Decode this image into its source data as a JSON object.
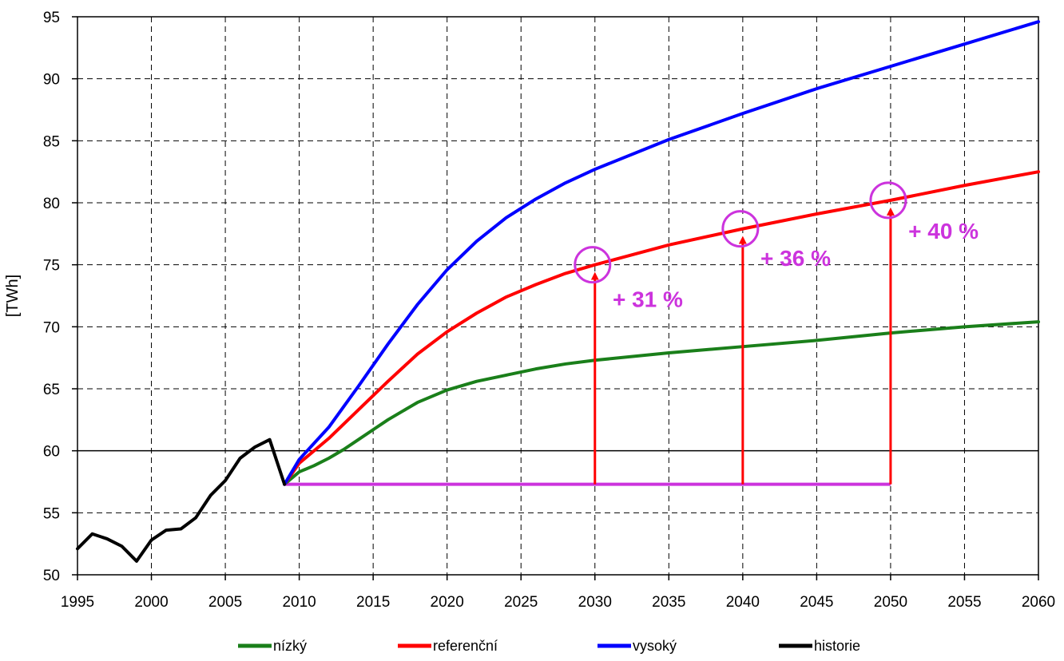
{
  "chart_data": {
    "type": "line",
    "title": "",
    "xlabel": "",
    "ylabel": "[TWh]",
    "xlim": [
      1995,
      2060
    ],
    "ylim": [
      50,
      95
    ],
    "xticks": [
      1995,
      2000,
      2005,
      2010,
      2015,
      2020,
      2025,
      2030,
      2035,
      2040,
      2045,
      2050,
      2055,
      2060
    ],
    "yticks": [
      50,
      55,
      60,
      65,
      70,
      75,
      80,
      85,
      90,
      95
    ],
    "grid": "dashed vertical and horizontal, solid line at 60",
    "legend_position": "bottom",
    "series": [
      {
        "name": "nízký",
        "color": "#1a7f1a",
        "x": [
          2009,
          2010,
          2011,
          2012,
          2013,
          2014,
          2015,
          2016,
          2017,
          2018,
          2019,
          2020,
          2022,
          2024,
          2026,
          2028,
          2030,
          2035,
          2040,
          2045,
          2050,
          2055,
          2060
        ],
        "y": [
          57.3,
          58.3,
          58.8,
          59.4,
          60.1,
          60.9,
          61.7,
          62.5,
          63.2,
          63.9,
          64.4,
          64.9,
          65.6,
          66.1,
          66.6,
          67.0,
          67.3,
          67.9,
          68.4,
          68.9,
          69.5,
          70.0,
          70.4
        ]
      },
      {
        "name": "referenční",
        "color": "#ff0000",
        "x": [
          2009,
          2010,
          2012,
          2014,
          2016,
          2018,
          2020,
          2022,
          2024,
          2026,
          2028,
          2030,
          2035,
          2040,
          2045,
          2050,
          2055,
          2060
        ],
        "y": [
          57.3,
          59.0,
          61.0,
          63.3,
          65.6,
          67.8,
          69.6,
          71.1,
          72.4,
          73.4,
          74.3,
          75.0,
          76.6,
          77.9,
          79.1,
          80.2,
          81.4,
          82.5
        ]
      },
      {
        "name": "vysoký",
        "color": "#0000ff",
        "x": [
          2009,
          2010,
          2012,
          2014,
          2016,
          2018,
          2020,
          2022,
          2024,
          2026,
          2028,
          2030,
          2035,
          2040,
          2045,
          2050,
          2055,
          2060
        ],
        "y": [
          57.3,
          59.3,
          61.9,
          65.2,
          68.6,
          71.8,
          74.6,
          76.9,
          78.8,
          80.3,
          81.6,
          82.7,
          85.1,
          87.2,
          89.2,
          91.0,
          92.8,
          94.6
        ]
      },
      {
        "name": "historie",
        "color": "#000000",
        "x": [
          1995,
          1996,
          1997,
          1998,
          1999,
          2000,
          2001,
          2002,
          2003,
          2004,
          2005,
          2006,
          2007,
          2008,
          2009
        ],
        "y": [
          52.1,
          53.3,
          52.9,
          52.3,
          51.1,
          52.8,
          53.6,
          53.7,
          54.6,
          56.4,
          57.6,
          59.4,
          60.3,
          60.9,
          57.3
        ]
      }
    ],
    "baseline": {
      "y": 57.3,
      "x_start": 2009,
      "x_end": 2050,
      "color": "#cc33dd"
    },
    "annotations": [
      {
        "x": 2030,
        "y": 75.0,
        "label": "+ 31 %",
        "label_x": 2031.2,
        "label_y": 71.6
      },
      {
        "x": 2040,
        "y": 77.9,
        "label": "+ 36 %",
        "label_x": 2041.2,
        "label_y": 74.9
      },
      {
        "x": 2050,
        "y": 80.2,
        "label": "+ 40 %",
        "label_x": 2051.2,
        "label_y": 77.1
      }
    ],
    "annotation_colors": {
      "arrow": "#ff0000",
      "circle": "#cc33dd",
      "text": "#cc33dd"
    }
  }
}
